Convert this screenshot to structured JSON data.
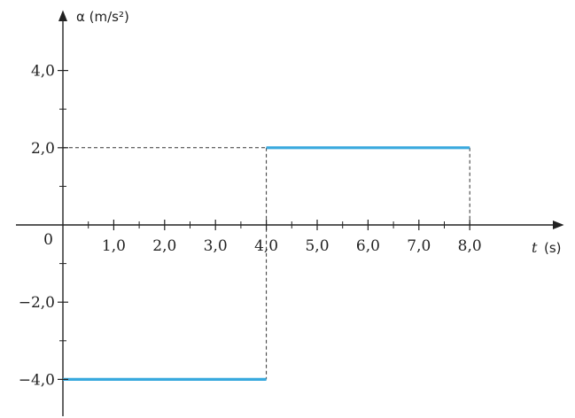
{
  "chart_data": {
    "type": "line",
    "step": true,
    "ylabel": "α (m/s²)",
    "xlabel_var": "t",
    "xlabel_unit": "(s)",
    "origin_label": "0",
    "xlim": [
      0,
      8.0
    ],
    "ylim": [
      -4.0,
      4.0
    ],
    "x_ticks": [
      1,
      2,
      3,
      4,
      5,
      6,
      7,
      8
    ],
    "x_tick_labels": [
      "1,0",
      "2,0",
      "3,0",
      "4,0",
      "5,0",
      "6,0",
      "7,0",
      "8,0"
    ],
    "y_ticks": [
      4,
      2,
      -2,
      -4
    ],
    "y_tick_labels": [
      "4,0",
      "2,0",
      "−2,0",
      "−4,0"
    ],
    "y_minor_ticks": [
      3,
      1,
      -1,
      -3
    ],
    "series": [
      {
        "segments": [
          {
            "x": [
              0,
              4.0
            ],
            "y": [
              -4.0,
              -4.0
            ]
          },
          {
            "x": [
              4.0,
              8.0
            ],
            "y": [
              2.0,
              2.0
            ]
          }
        ]
      }
    ],
    "line_color": "#38a9de",
    "grid": false
  }
}
